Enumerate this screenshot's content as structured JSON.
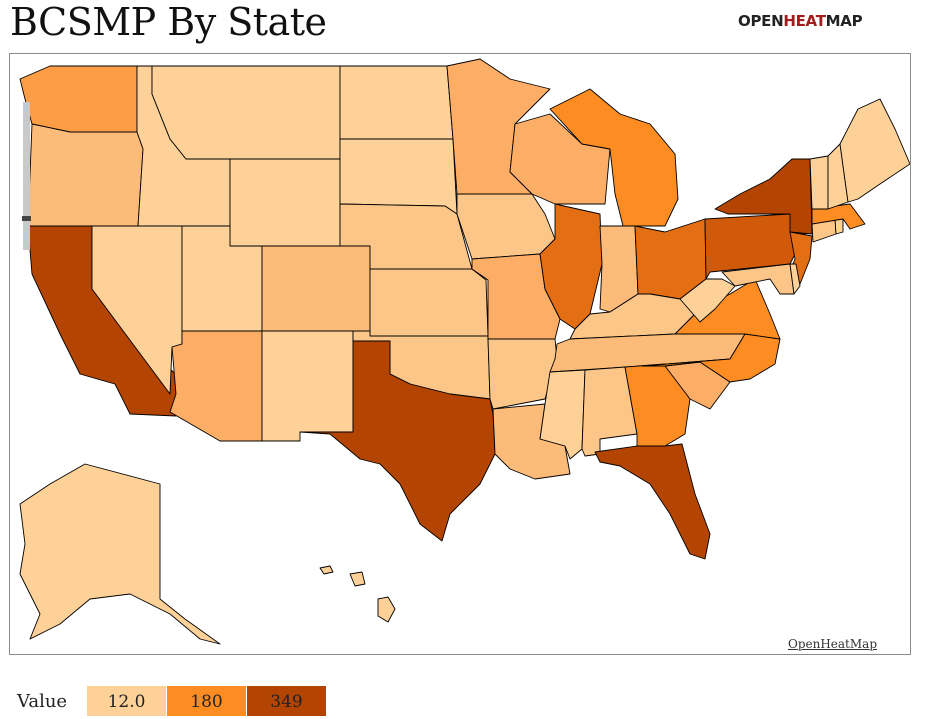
{
  "title": "BCSMP By State",
  "brand": {
    "part1": "OPEN",
    "part2": "HEAT",
    "part3": "MAP"
  },
  "attribution": "OpenHeatMap",
  "legend": {
    "label": "Value",
    "stops": [
      {
        "value": "12.0",
        "color": "#fdd197"
      },
      {
        "value": "180",
        "color": "#fd8c22"
      },
      {
        "value": "349",
        "color": "#b44402"
      }
    ]
  },
  "palette": {
    "c1": "#fdd197",
    "c2": "#fcc688",
    "c3": "#fcbb78",
    "c4": "#fdae66",
    "c5": "#fd9d46",
    "c6": "#fd8c22",
    "c7": "#e46e14",
    "c8": "#d05a0a",
    "c9": "#b44402"
  }
}
